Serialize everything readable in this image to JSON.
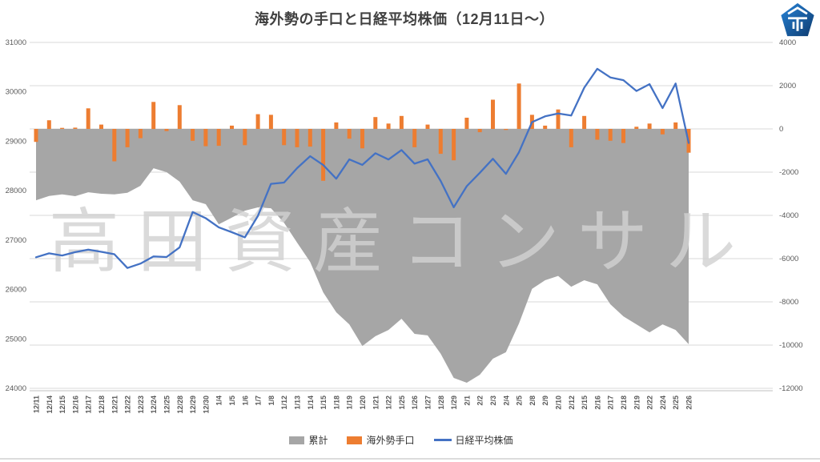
{
  "title": "海外勢の手口と日経平均株価（12月11日～）",
  "watermark": "高田資産コンサル",
  "logo": {
    "name": "takada-shisan-pentagon-logo",
    "color_top": "#2178c4",
    "color_bottom": "#0d3a6e"
  },
  "colors": {
    "area": "#A6A6A6",
    "bar": "#ED7D31",
    "line": "#4472C4",
    "grid": "#DADADA",
    "axis_line": "#BFBFBF",
    "axis_text": "#595959",
    "title_text": "#404040",
    "watermark_text": "#D2D2D2"
  },
  "legend": [
    {
      "label": "累計",
      "type": "rect",
      "color": "#A6A6A6"
    },
    {
      "label": "海外勢手口",
      "type": "rect",
      "color": "#ED7D31"
    },
    {
      "label": "日経平均株価",
      "type": "line",
      "color": "#4472C4"
    }
  ],
  "chart_data": {
    "type": "combo",
    "title": "海外勢の手口と日経平均株価（12月11日～）",
    "grid": true,
    "legend_position": "bottom",
    "categories": [
      "12/11",
      "12/14",
      "12/15",
      "12/16",
      "12/17",
      "12/18",
      "12/21",
      "12/22",
      "12/23",
      "12/24",
      "12/25",
      "12/28",
      "12/29",
      "12/30",
      "1/4",
      "1/5",
      "1/6",
      "1/7",
      "1/8",
      "1/12",
      "1/13",
      "1/14",
      "1/15",
      "1/18",
      "1/19",
      "1/20",
      "1/21",
      "1/22",
      "1/25",
      "1/26",
      "1/27",
      "1/28",
      "1/29",
      "2/1",
      "2/2",
      "2/3",
      "2/4",
      "2/5",
      "2/8",
      "2/9",
      "2/10",
      "2/12",
      "2/15",
      "2/16",
      "2/17",
      "2/18",
      "2/19",
      "2/22",
      "2/24",
      "2/25",
      "2/26"
    ],
    "left_axis": {
      "min": 24000,
      "max": 31000,
      "step": 1000,
      "ticks": [
        "31000",
        "30000",
        "29000",
        "28000",
        "27000",
        "26000",
        "25000",
        "24000"
      ]
    },
    "right_axis": {
      "min": -12000,
      "max": 4000,
      "step": 2000,
      "ticks": [
        "4000",
        "2000",
        "0",
        "-2000",
        "-4000",
        "-6000",
        "-8000",
        "-10000",
        "-12000"
      ]
    },
    "series": [
      {
        "name": "累計",
        "type": "area",
        "axis": "right",
        "color": "#A6A6A6",
        "values": [
          -3300,
          -3100,
          -3030,
          -3110,
          -2930,
          -3000,
          -3030,
          -2950,
          -2630,
          -1820,
          -2000,
          -2440,
          -3300,
          -3480,
          -4410,
          -4100,
          -3780,
          -3630,
          -3670,
          -4340,
          -5260,
          -6150,
          -7560,
          -8480,
          -9040,
          -10040,
          -9590,
          -9300,
          -8780,
          -9480,
          -9550,
          -10400,
          -11520,
          -11740,
          -11370,
          -10630,
          -10330,
          -9000,
          -7400,
          -7000,
          -6800,
          -7300,
          -7000,
          -7190,
          -8110,
          -8670,
          -9040,
          -9410,
          -9040,
          -9300,
          -9960
        ]
      },
      {
        "name": "海外勢手口",
        "type": "bar",
        "axis": "right",
        "color": "#ED7D31",
        "values": [
          -600,
          400,
          50,
          60,
          950,
          200,
          -1500,
          -850,
          -430,
          1250,
          -100,
          1100,
          -550,
          -800,
          -780,
          150,
          -750,
          680,
          650,
          -750,
          -850,
          -820,
          -2400,
          300,
          -450,
          -900,
          550,
          250,
          600,
          -850,
          200,
          -1150,
          -1450,
          520,
          -150,
          1350,
          -50,
          2100,
          650,
          150,
          900,
          -850,
          600,
          -500,
          -550,
          -650,
          100,
          250,
          -250,
          300,
          -1100
        ]
      },
      {
        "name": "日経平均株価",
        "type": "line",
        "axis": "left",
        "color": "#4472C4",
        "values": [
          26652,
          26732,
          26688,
          26757,
          26806,
          26763,
          26714,
          26436,
          26524,
          26668,
          26657,
          26854,
          27568,
          27444,
          27258,
          27159,
          27056,
          27491,
          28139,
          28164,
          28456,
          28698,
          28519,
          28242,
          28633,
          28523,
          28757,
          28631,
          28822,
          28546,
          28635,
          28197,
          27663,
          28091,
          28362,
          28646,
          28341,
          28779,
          29388,
          29505,
          29562,
          29520,
          30084,
          30467,
          30292,
          30236,
          30018,
          30156,
          29671,
          30168,
          28966
        ]
      }
    ]
  }
}
